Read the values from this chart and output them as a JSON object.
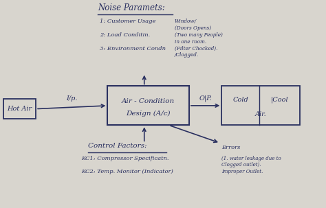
{
  "bg_color": "#d8d5ce",
  "panel_color": "#e8e5de",
  "ink_color": "#2a3060",
  "title": "Noise Paramets:",
  "noise_items": [
    "1: Customer Usage",
    "2: Load Conditin.",
    "3: Environment Condn"
  ],
  "noise_notes": [
    "Window/\n(Doors Opens)",
    "(Two many People)\nin one room.",
    "(Filter Chocked).\n/Clogged."
  ],
  "center_box_lines": [
    "Air - Condition",
    "Design (A/c)"
  ],
  "input_box": "Hot Air",
  "input_label": "I/p.",
  "output_label": "O|P.",
  "error_label": "Errors",
  "error_text": "(1. water leakage due to\nClogged outlet).\nImproper Outlet.",
  "control_title": "Control Factors:",
  "control_items": [
    "KC1: Compressor Specificatn.",
    "KC2: Temp. Monitor (Indicator)"
  ],
  "cold_line1": "Cold |Cool",
  "cold_line2": "Air."
}
